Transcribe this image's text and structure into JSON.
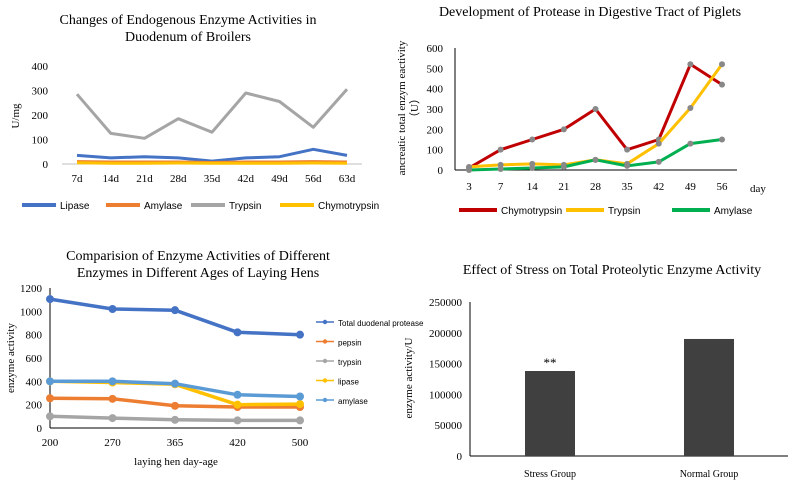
{
  "chart_data": [
    {
      "type": "line",
      "title": "Changes of Endogenous Enzyme Activities in Duodenum of  Broilers",
      "title_lines": [
        "Changes of Endogenous Enzyme Activities in",
        "Duodenum of  Broilers"
      ],
      "ylabel": "U/mg",
      "xlabel": "",
      "ylim": [
        0,
        400
      ],
      "yticks": [
        "0",
        "100",
        "200",
        "300",
        "400"
      ],
      "categories": [
        "7d",
        "14d",
        "21d",
        "28d",
        "35d",
        "42d",
        "49d",
        "56d",
        "63d"
      ],
      "legend_position": "bottom",
      "grid": false,
      "series": [
        {
          "name": "Lipase",
          "color": "#4472C4",
          "values": [
            35,
            25,
            30,
            25,
            12,
            25,
            30,
            60,
            35
          ]
        },
        {
          "name": "Amylase",
          "color": "#ED7D31",
          "values": [
            10,
            8,
            8,
            8,
            6,
            8,
            8,
            10,
            8
          ]
        },
        {
          "name": "Trypsin",
          "color": "#A5A5A5",
          "values": [
            285,
            125,
            105,
            185,
            130,
            290,
            255,
            150,
            305
          ]
        },
        {
          "name": "Chymotrypsin",
          "color": "#FFC000",
          "values": [
            5,
            3,
            3,
            4,
            3,
            3,
            3,
            4,
            3
          ]
        }
      ]
    },
    {
      "type": "line",
      "title": "Development of Protease in Digestive Tract of Piglets",
      "ylabel_lines": [
        "ancreatic total enzym eactivity",
        "（U）"
      ],
      "xlabel": "day",
      "ylim": [
        0,
        600
      ],
      "yticks": [
        "0",
        "100",
        "200",
        "300",
        "400",
        "500",
        "600"
      ],
      "categories": [
        "3",
        "7",
        "14",
        "21",
        "28",
        "35",
        "42",
        "49",
        "56"
      ],
      "legend_position": "bottom",
      "grid": false,
      "series": [
        {
          "name": "Chymotrypsin",
          "color": "#C00000",
          "values": [
            10,
            100,
            150,
            200,
            300,
            100,
            150,
            520,
            420
          ]
        },
        {
          "name": "Trypsin",
          "color": "#FFC000",
          "values": [
            15,
            25,
            30,
            25,
            50,
            30,
            130,
            305,
            520
          ]
        },
        {
          "name": "Amylase",
          "color": "#00B050",
          "values": [
            0,
            5,
            10,
            15,
            50,
            20,
            40,
            130,
            150
          ]
        }
      ]
    },
    {
      "type": "line",
      "title": "Comparision of Enzyme Activities of Different Enzymes in Different Ages of Laying Hens",
      "title_lines": [
        "Comparision of Enzyme Activities of Different",
        "Enzymes in Different Ages of Laying Hens"
      ],
      "ylabel": "enzyme activity",
      "xlabel": "laying hen day-age",
      "ylim": [
        0,
        1200
      ],
      "yticks": [
        "0",
        "200",
        "400",
        "600",
        "800",
        "1000",
        "1200"
      ],
      "categories": [
        "200",
        "270",
        "365",
        "420",
        "500"
      ],
      "legend_position": "right",
      "grid": false,
      "series": [
        {
          "name": "Total duodenal protease",
          "color": "#4472C4",
          "values": [
            1105,
            1020,
            1010,
            820,
            800
          ]
        },
        {
          "name": "pepsin",
          "color": "#ED7D31",
          "values": [
            255,
            250,
            190,
            180,
            180
          ]
        },
        {
          "name": "trypsin",
          "color": "#A5A5A5",
          "values": [
            100,
            85,
            70,
            65,
            65
          ]
        },
        {
          "name": "lipase",
          "color": "#FFC000",
          "values": [
            400,
            390,
            375,
            200,
            205
          ]
        },
        {
          "name": "amylase",
          "color": "#5B9BD5",
          "values": [
            400,
            400,
            380,
            285,
            270
          ]
        }
      ]
    },
    {
      "type": "bar",
      "title": "Effect of Stress on Total Proteolytic Enzyme Activity",
      "ylabel": "enzyme activity/U",
      "xlabel": "",
      "ylim": [
        0,
        250000
      ],
      "yticks": [
        "0",
        "50000",
        "100000",
        "150000",
        "200000",
        "250000"
      ],
      "categories": [
        "Stress Group",
        "Normal Group"
      ],
      "values": [
        138000,
        190000
      ],
      "annotations": [
        "**",
        ""
      ],
      "bar_color": "#404040",
      "grid": false
    }
  ]
}
